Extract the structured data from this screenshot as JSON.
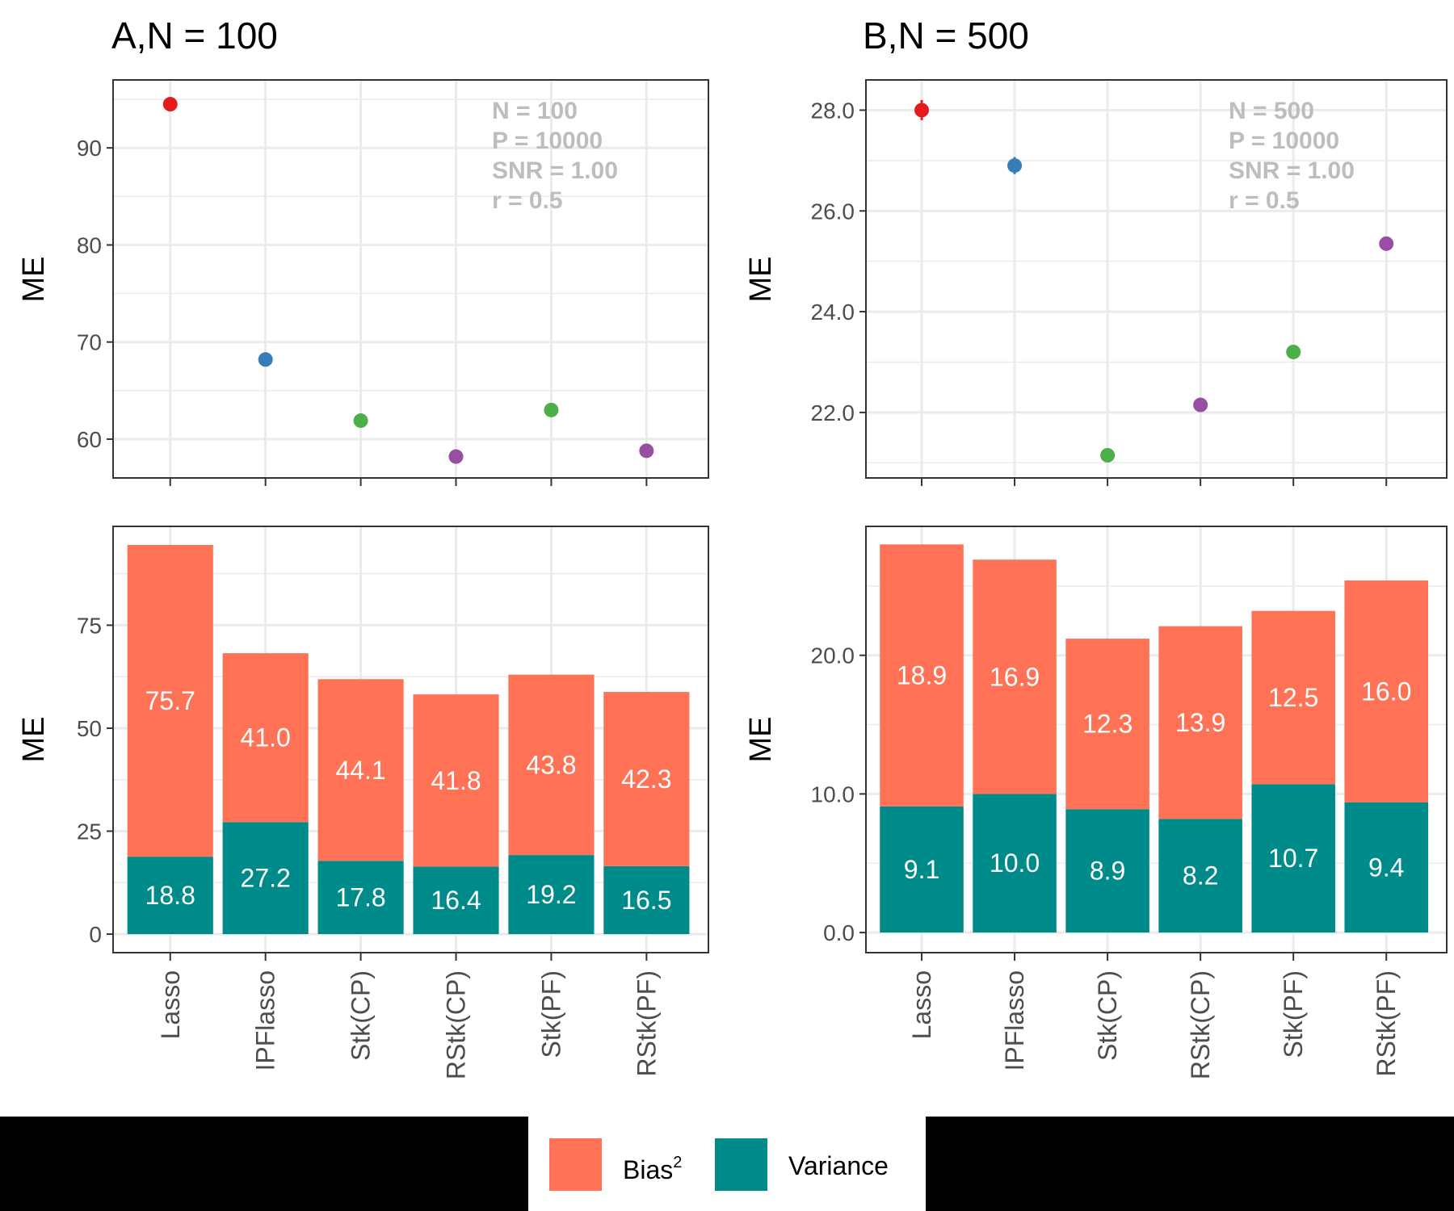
{
  "colors": {
    "bias": "#FF7256",
    "variance": "#008B8B",
    "method_colors": [
      "#E41A1C",
      "#377EB8",
      "#4DAF4A",
      "#984EA3",
      "#4DAF4A",
      "#984EA3"
    ]
  },
  "legend": {
    "bias_label": "Bias",
    "bias_sup": "2",
    "variance_label": "Variance"
  },
  "chart_data": [
    {
      "title": "A,N = 100",
      "categories": [
        "Lasso",
        "IPFlasso",
        "Stk(CP)",
        "RStk(CP)",
        "Stk(PF)",
        "RStk(PF)"
      ],
      "annotation": [
        "N = 100",
        "P = 10000",
        "SNR = 1.00",
        "r = 0.5"
      ],
      "top": {
        "type": "scatter",
        "ylabel": "ME",
        "ylim": [
          56,
          97
        ],
        "yticks": [
          60,
          70,
          80,
          90
        ],
        "ytick_labels": [
          "60",
          "70",
          "80",
          "90"
        ],
        "values": [
          94.5,
          68.2,
          61.9,
          58.2,
          63.0,
          58.8
        ],
        "errors": [
          0.0,
          0.0,
          0.0,
          0.0,
          0.0,
          0.0
        ]
      },
      "bottom": {
        "type": "bar",
        "stacked": true,
        "ylabel": "ME",
        "ylim": [
          -4.5,
          99
        ],
        "yticks": [
          0,
          25,
          50,
          75
        ],
        "ytick_labels": [
          "0",
          "25",
          "50",
          "75"
        ],
        "series": [
          {
            "name": "Variance",
            "values": [
              18.8,
              27.2,
              17.8,
              16.4,
              19.2,
              16.5
            ],
            "labels": [
              "18.8",
              "27.2",
              "17.8",
              "16.4",
              "19.2",
              "16.5"
            ]
          },
          {
            "name": "Bias2",
            "values": [
              75.7,
              41.0,
              44.1,
              41.8,
              43.8,
              42.3
            ],
            "labels": [
              "75.7",
              "41.0",
              "44.1",
              "41.8",
              "43.8",
              "42.3"
            ]
          }
        ]
      }
    },
    {
      "title": "B,N = 500",
      "categories": [
        "Lasso",
        "IPFlasso",
        "Stk(CP)",
        "RStk(CP)",
        "Stk(PF)",
        "RStk(PF)"
      ],
      "annotation": [
        "N = 500",
        "P = 10000",
        "SNR = 1.00",
        "r = 0.5"
      ],
      "top": {
        "type": "scatter",
        "ylabel": "ME",
        "ylim": [
          20.7,
          28.6
        ],
        "yticks": [
          22,
          24,
          26,
          28
        ],
        "ytick_labels": [
          "22.0",
          "24.0",
          "26.0",
          "28.0"
        ],
        "values": [
          28.0,
          26.9,
          21.15,
          22.15,
          23.2,
          25.35
        ],
        "errors": [
          0.2,
          0.17,
          0.0,
          0.0,
          0.0,
          0.0
        ]
      },
      "bottom": {
        "type": "bar",
        "stacked": true,
        "ylabel": "ME",
        "ylim": [
          -1.45,
          29.3
        ],
        "yticks": [
          0,
          10,
          20
        ],
        "ytick_labels": [
          "0.0",
          "10.0",
          "20.0"
        ],
        "series": [
          {
            "name": "Variance",
            "values": [
              9.1,
              10.0,
              8.9,
              8.2,
              10.7,
              9.4
            ],
            "labels": [
              "9.1",
              "10.0",
              "8.9",
              "8.2",
              "10.7",
              "9.4"
            ]
          },
          {
            "name": "Bias2",
            "values": [
              18.9,
              16.9,
              12.3,
              13.9,
              12.5,
              16.0
            ],
            "labels": [
              "18.9",
              "16.9",
              "12.3",
              "13.9",
              "12.5",
              "16.0"
            ]
          }
        ]
      }
    }
  ]
}
